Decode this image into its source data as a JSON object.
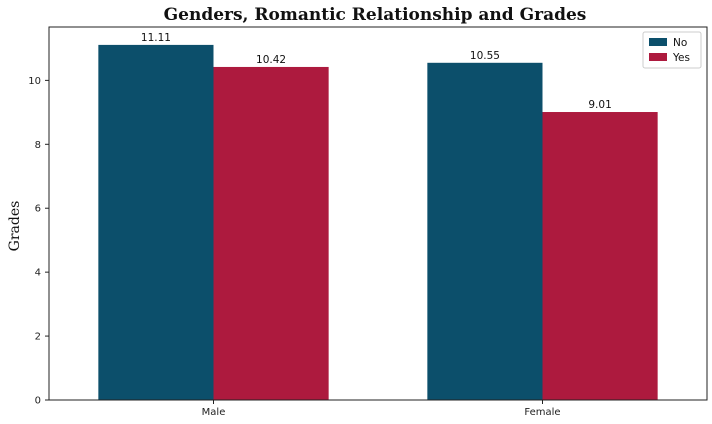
{
  "chart_data": {
    "type": "bar",
    "title": "Genders, Romantic Relationship and Grades",
    "xlabel": "",
    "ylabel": "Grades",
    "categories": [
      "Male",
      "Female"
    ],
    "series": [
      {
        "name": "No",
        "values": [
          11.11,
          10.55
        ],
        "color": "#0c4f6b"
      },
      {
        "name": "Yes",
        "values": [
          10.42,
          9.01
        ],
        "color": "#ad1a3e"
      }
    ],
    "ylim": [
      0,
      11.67
    ],
    "yticks": [
      0,
      2,
      4,
      6,
      8,
      10
    ],
    "grid": false,
    "legend_position": "top-right"
  }
}
